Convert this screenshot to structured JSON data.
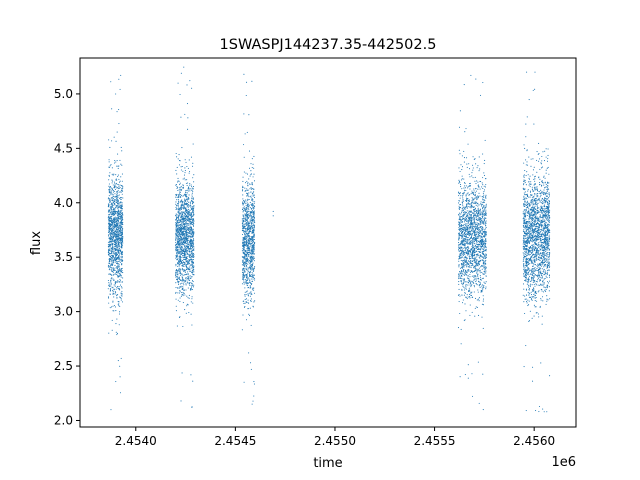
{
  "chart_data": {
    "type": "scatter",
    "title": "1SWASPJ144237.35-442502.5",
    "xlabel": "time",
    "ylabel": "flux",
    "x_offset_label": "1e6",
    "xlim": [
      2453720,
      2456210
    ],
    "ylim": [
      1.94,
      5.33
    ],
    "x_ticks": [
      2.454,
      2.4545,
      2.455,
      2.4555,
      2.456
    ],
    "x_tick_labels": [
      "2.4540",
      "2.4545",
      "2.4550",
      "2.4555",
      "2.4560"
    ],
    "y_ticks": [
      2.0,
      2.5,
      3.0,
      3.5,
      4.0,
      4.5,
      5.0
    ],
    "y_tick_labels": [
      "2.0",
      "2.5",
      "3.0",
      "3.5",
      "4.0",
      "4.5",
      "5.0"
    ],
    "grid": false,
    "marker_color": "#1f77b4",
    "series": [
      {
        "segments": [
          {
            "x_range": [
              2453862,
              2453935
            ],
            "center": 3.7,
            "spread": 0.27,
            "n": 1300,
            "min": 2.08,
            "max": 5.17
          },
          {
            "x_range": [
              2454200,
              2454292
            ],
            "center": 3.68,
            "spread": 0.26,
            "n": 1500,
            "min": 2.12,
            "max": 5.25
          },
          {
            "x_range": [
              2454535,
              2454597
            ],
            "center": 3.66,
            "spread": 0.27,
            "n": 1000,
            "min": 2.15,
            "max": 5.18
          },
          {
            "x_range": [
              2455620,
              2455760
            ],
            "center": 3.68,
            "spread": 0.27,
            "n": 1700,
            "min": 2.1,
            "max": 5.17
          },
          {
            "x_range": [
              2455945,
              2456078
            ],
            "center": 3.7,
            "spread": 0.28,
            "n": 1900,
            "min": 2.08,
            "max": 5.2
          }
        ],
        "isolated_points": [
          {
            "x": 2454690,
            "y": 3.88
          },
          {
            "x": 2454690,
            "y": 3.92
          }
        ]
      }
    ]
  }
}
